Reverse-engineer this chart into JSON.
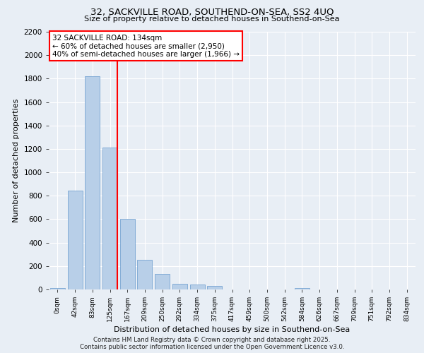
{
  "title_line1": "32, SACKVILLE ROAD, SOUTHEND-ON-SEA, SS2 4UQ",
  "title_line2": "Size of property relative to detached houses in Southend-on-Sea",
  "xlabel": "Distribution of detached houses by size in Southend-on-Sea",
  "ylabel": "Number of detached properties",
  "bar_labels": [
    "0sqm",
    "42sqm",
    "83sqm",
    "125sqm",
    "167sqm",
    "209sqm",
    "250sqm",
    "292sqm",
    "334sqm",
    "375sqm",
    "417sqm",
    "459sqm",
    "500sqm",
    "542sqm",
    "584sqm",
    "626sqm",
    "667sqm",
    "709sqm",
    "751sqm",
    "792sqm",
    "834sqm"
  ],
  "bar_values": [
    15,
    845,
    1820,
    1210,
    600,
    255,
    130,
    50,
    45,
    28,
    0,
    0,
    0,
    0,
    15,
    0,
    0,
    0,
    0,
    0,
    0
  ],
  "bar_color": "#b8cfe8",
  "bar_edge_color": "#6699cc",
  "vline_x_index": 3,
  "vline_color": "red",
  "annotation_text": "32 SACKVILLE ROAD: 134sqm\n← 60% of detached houses are smaller (2,950)\n40% of semi-detached houses are larger (1,966) →",
  "annotation_box_color": "white",
  "annotation_box_edge_color": "red",
  "ylim": [
    0,
    2200
  ],
  "yticks": [
    0,
    200,
    400,
    600,
    800,
    1000,
    1200,
    1400,
    1600,
    1800,
    2000,
    2200
  ],
  "background_color": "#e8eef5",
  "grid_color": "white",
  "footer_line1": "Contains HM Land Registry data © Crown copyright and database right 2025.",
  "footer_line2": "Contains public sector information licensed under the Open Government Licence v3.0."
}
